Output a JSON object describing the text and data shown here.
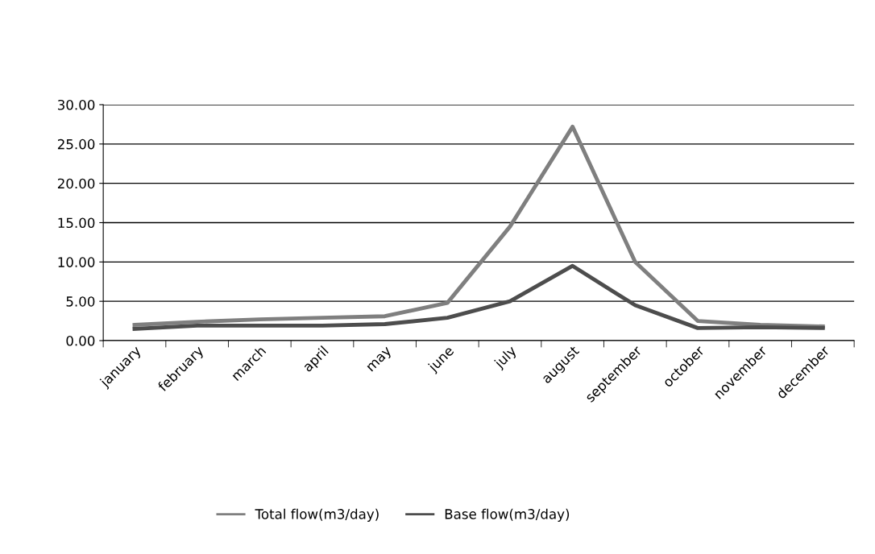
{
  "chart_data": {
    "type": "line",
    "categories": [
      "january",
      "february",
      "march",
      "april",
      "may",
      "june",
      "july",
      "august",
      "september",
      "october",
      "november",
      "december"
    ],
    "series": [
      {
        "name": "Total flow(m3/day)",
        "color": "#7f7f7f",
        "values": [
          2.0,
          2.4,
          2.7,
          2.9,
          3.1,
          4.8,
          14.5,
          27.2,
          10.0,
          2.5,
          2.0,
          1.8
        ]
      },
      {
        "name": "Base flow(m3/day)",
        "color": "#4d4d4d",
        "values": [
          1.5,
          1.9,
          1.9,
          1.9,
          2.1,
          2.9,
          5.0,
          9.5,
          4.5,
          1.6,
          1.7,
          1.6
        ]
      }
    ],
    "ylim": [
      0,
      30
    ],
    "yticks": [
      {
        "value": 0,
        "label": "0.00"
      },
      {
        "value": 5,
        "label": "5.00"
      },
      {
        "value": 10,
        "label": "10.00"
      },
      {
        "value": 15,
        "label": "15.00"
      },
      {
        "value": 20,
        "label": "20.00"
      },
      {
        "value": 25,
        "label": "25.00"
      },
      {
        "value": 30,
        "label": "30.00"
      }
    ],
    "grid": "y",
    "legend": "bottom",
    "marker": "none",
    "line_style": "solid"
  }
}
